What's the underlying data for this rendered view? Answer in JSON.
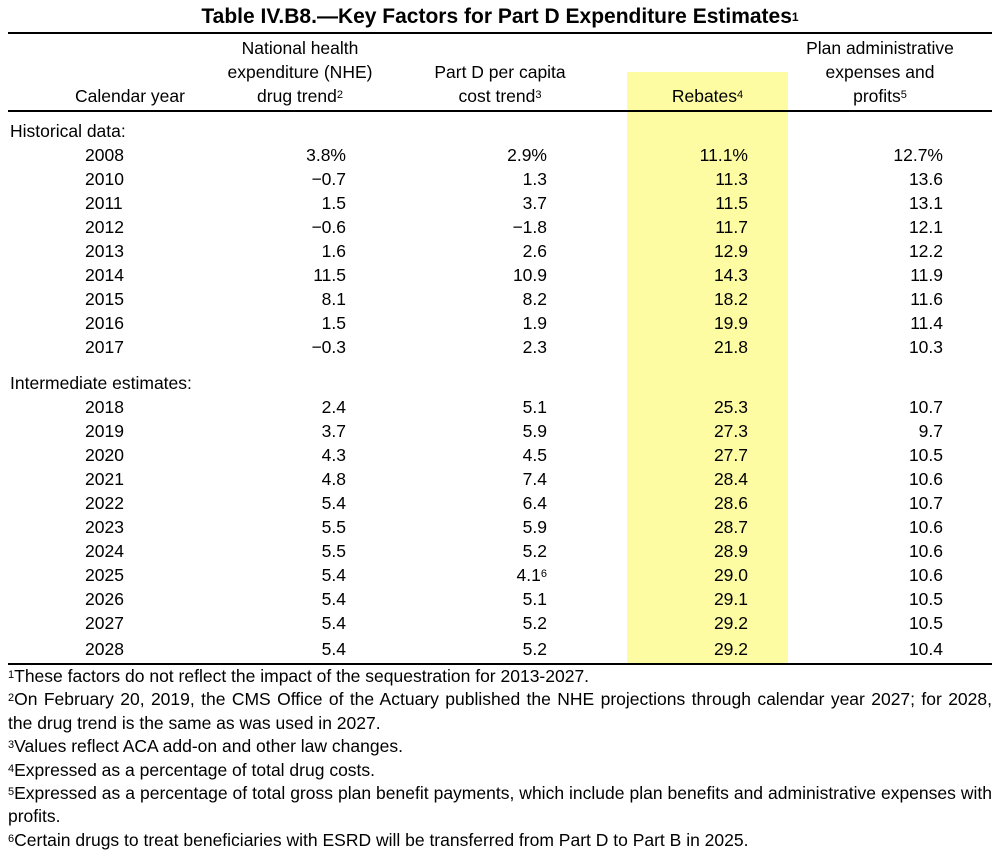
{
  "title": {
    "text": "Table IV.B8.—Key Factors for Part D Expenditure Estimates",
    "note": "1"
  },
  "headers": {
    "year": {
      "lines": [
        "Calendar year"
      ]
    },
    "nhe": {
      "lines": [
        "National health",
        "expenditure (NHE)",
        "drug trend"
      ],
      "note": "2"
    },
    "partd": {
      "lines": [
        "Part D per capita",
        "cost trend"
      ],
      "note": "3"
    },
    "rebates": {
      "lines": [
        "Rebates"
      ],
      "note": "4"
    },
    "admin": {
      "lines": [
        "Plan administrative",
        "expenses and",
        "profits"
      ],
      "note": "5"
    }
  },
  "sections": [
    {
      "label": "Historical data:",
      "rows": [
        {
          "year": "2008",
          "nhe": "3.8%",
          "partd": "2.9%",
          "rebates": "11.1%",
          "admin": "12.7%"
        },
        {
          "year": "2010",
          "nhe": "−0.7",
          "partd": "1.3",
          "rebates": "11.3",
          "admin": "13.6"
        },
        {
          "year": "2011",
          "nhe": "1.5",
          "partd": "3.7",
          "rebates": "11.5",
          "admin": "13.1"
        },
        {
          "year": "2012",
          "nhe": "−0.6",
          "partd": "−1.8",
          "rebates": "11.7",
          "admin": "12.1"
        },
        {
          "year": "2013",
          "nhe": "1.6",
          "partd": "2.6",
          "rebates": "12.9",
          "admin": "12.2"
        },
        {
          "year": "2014",
          "nhe": "11.5",
          "partd": "10.9",
          "rebates": "14.3",
          "admin": "11.9"
        },
        {
          "year": "2015",
          "nhe": "8.1",
          "partd": "8.2",
          "rebates": "18.2",
          "admin": "11.6"
        },
        {
          "year": "2016",
          "nhe": "1.5",
          "partd": "1.9",
          "rebates": "19.9",
          "admin": "11.4"
        },
        {
          "year": "2017",
          "nhe": "−0.3",
          "partd": "2.3",
          "rebates": "21.8",
          "admin": "10.3"
        }
      ]
    },
    {
      "label": "Intermediate estimates:",
      "rows": [
        {
          "year": "2018",
          "nhe": "2.4",
          "partd": "5.1",
          "rebates": "25.3",
          "admin": "10.7"
        },
        {
          "year": "2019",
          "nhe": "3.7",
          "partd": "5.9",
          "rebates": "27.3",
          "admin": "9.7"
        },
        {
          "year": "2020",
          "nhe": "4.3",
          "partd": "4.5",
          "rebates": "27.7",
          "admin": "10.5"
        },
        {
          "year": "2021",
          "nhe": "4.8",
          "partd": "7.4",
          "rebates": "28.4",
          "admin": "10.6"
        },
        {
          "year": "2022",
          "nhe": "5.4",
          "partd": "6.4",
          "rebates": "28.6",
          "admin": "10.7"
        },
        {
          "year": "2023",
          "nhe": "5.5",
          "partd": "5.9",
          "rebates": "28.7",
          "admin": "10.6"
        },
        {
          "year": "2024",
          "nhe": "5.5",
          "partd": "5.2",
          "rebates": "28.9",
          "admin": "10.6"
        },
        {
          "year": "2025",
          "nhe": "5.4",
          "partd": "4.1",
          "partd_note": "6",
          "rebates": "29.0",
          "admin": "10.6"
        },
        {
          "year": "2026",
          "nhe": "5.4",
          "partd": "5.1",
          "rebates": "29.1",
          "admin": "10.5"
        },
        {
          "year": "2027",
          "nhe": "5.4",
          "partd": "5.2",
          "rebates": "29.2",
          "admin": "10.5"
        },
        {
          "year": "2028",
          "nhe": "5.4",
          "partd": "5.2",
          "rebates": "29.2",
          "admin": "10.4"
        }
      ]
    }
  ],
  "footnotes": [
    {
      "mark": "1",
      "text": "These factors do not reflect the impact of the sequestration for 2013-2027."
    },
    {
      "mark": "2",
      "text": "On February 20, 2019, the CMS Office of the Actuary published the NHE projections through calendar year 2027; for 2028, the drug trend is the same as was used in 2027."
    },
    {
      "mark": "3",
      "text": "Values reflect ACA add-on and other law changes."
    },
    {
      "mark": "4",
      "text": "Expressed as a percentage of total drug costs."
    },
    {
      "mark": "5",
      "text": "Expressed as a percentage of total gross plan benefit payments, which include plan benefits and administrative expenses with profits."
    },
    {
      "mark": "6",
      "text": "Certain drugs to treat beneficiaries with ESRD will be transferred from Part D to Part B in 2025."
    }
  ],
  "colors": {
    "highlight": "#fdfca3",
    "text": "#000000",
    "background": "#ffffff"
  }
}
